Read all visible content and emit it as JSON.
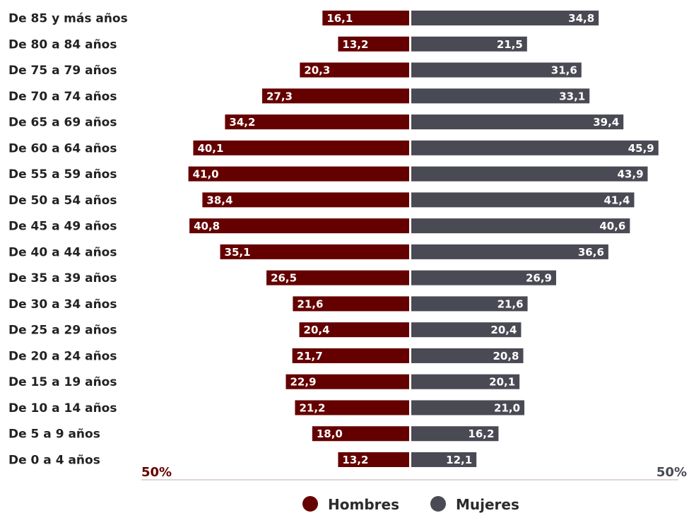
{
  "chart_data": {
    "type": "bar",
    "orientation": "horizontal",
    "layout": "population-pyramid",
    "categories": [
      "De 85 y más años",
      "De 80 a 84 años",
      "De 75 a 79 años",
      "De 70 a 74 años",
      "De 65 a 69 años",
      "De 60 a 64 años",
      "De 55 a 59 años",
      "De 50 a 54 años",
      "De 45 a 49 años",
      "De 40 a 44 años",
      "De 35 a 39 años",
      "De 30 a 34 años",
      "De 25 a 29 años",
      "De 20 a 24 años",
      "De 15 a 19 años",
      "De 10 a 14 años",
      "De 5 a 9 años",
      "De 0 a 4 años"
    ],
    "series": [
      {
        "name": "Hombres",
        "color": "#650000",
        "values": [
          16.1,
          13.2,
          20.3,
          27.3,
          34.2,
          40.1,
          41.0,
          38.4,
          40.8,
          35.1,
          26.5,
          21.6,
          20.4,
          21.7,
          22.9,
          21.2,
          18.0,
          13.2
        ],
        "labels": [
          "16,1",
          "13,2",
          "20,3",
          "27,3",
          "34,2",
          "40,1",
          "41,0",
          "38,4",
          "40,8",
          "35,1",
          "26,5",
          "21,6",
          "20,4",
          "21,7",
          "22,9",
          "21,2",
          "18,0",
          "13,2"
        ]
      },
      {
        "name": "Mujeres",
        "color": "#4a4a54",
        "values": [
          34.8,
          21.5,
          31.6,
          33.1,
          39.4,
          45.9,
          43.9,
          41.4,
          40.6,
          36.6,
          26.9,
          21.6,
          20.4,
          20.8,
          20.1,
          21.0,
          16.2,
          12.1
        ],
        "labels": [
          "34,8",
          "21,5",
          "31,6",
          "33,1",
          "39,4",
          "45,9",
          "43,9",
          "41,4",
          "40,6",
          "36,6",
          "26,9",
          "21,6",
          "20,4",
          "20,8",
          "20,1",
          "21,0",
          "16,2",
          "12,1"
        ]
      }
    ],
    "axis": {
      "left_label": "50%",
      "right_label": "50%",
      "range": [
        0,
        50
      ]
    },
    "legend": {
      "placement": "bottom-center",
      "items": [
        "Hombres",
        "Mujeres"
      ]
    },
    "grid": false
  }
}
